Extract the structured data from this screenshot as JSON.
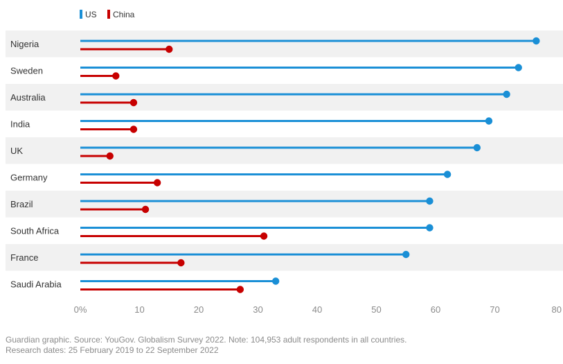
{
  "chart_data": {
    "type": "bar",
    "orientation": "horizontal",
    "legend_position": "top-left",
    "categories": [
      "Nigeria",
      "Sweden",
      "Australia",
      "India",
      "UK",
      "Germany",
      "Brazil",
      "South Africa",
      "France",
      "Saudi Arabia"
    ],
    "series": [
      {
        "name": "US",
        "color": "#1a8fd6",
        "values": [
          77,
          74,
          72,
          69,
          67,
          62,
          59,
          59,
          55,
          33
        ]
      },
      {
        "name": "China",
        "color": "#c70000",
        "values": [
          15,
          6,
          9,
          9,
          5,
          13,
          11,
          31,
          17,
          27
        ]
      }
    ],
    "xlim": [
      0,
      80
    ],
    "x_ticks": [
      "0%",
      "10",
      "20",
      "30",
      "40",
      "50",
      "60",
      "70",
      "80"
    ],
    "row_band_colors": [
      "#f1f1f1",
      "#ffffff"
    ],
    "grid": false
  },
  "footer": {
    "line1": "Guardian graphic. Source: YouGov. Globalism Survey 2022. Note: 104,953 adult respondents in all countries.",
    "line2": "Research dates: 25 February 2019 to 22 September 2022"
  }
}
